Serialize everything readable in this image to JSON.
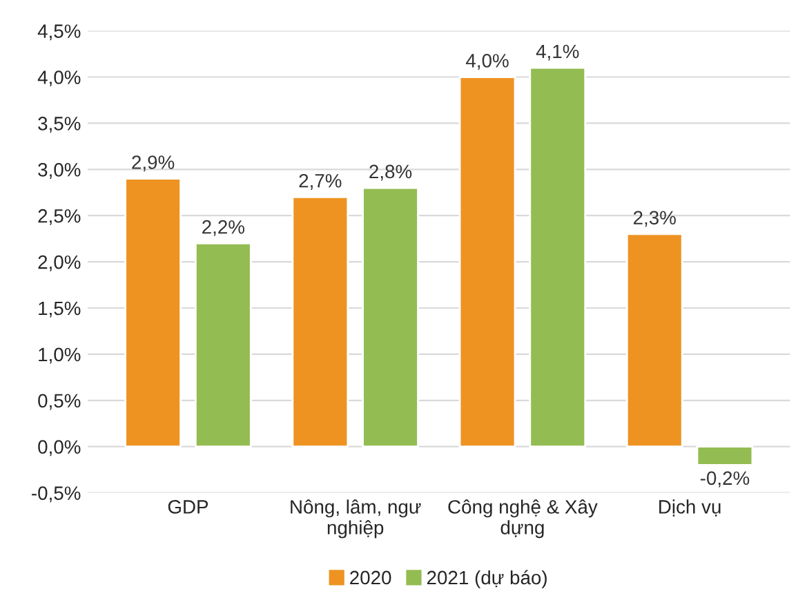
{
  "chart_data": {
    "type": "bar",
    "categories": [
      "GDP",
      "Nông, lâm, ngư\nnghiệp",
      "Công nghệ & Xây\ndựng",
      "Dịch vụ"
    ],
    "series": [
      {
        "name": "2020",
        "color": "#ee9322",
        "values": [
          2.9,
          2.7,
          4.0,
          2.3
        ],
        "value_labels": [
          "2,9%",
          "2,7%",
          "4,0%",
          "2,3%"
        ]
      },
      {
        "name": "2021 (dự báo)",
        "color": "#93bc52",
        "values": [
          2.2,
          2.8,
          4.1,
          -0.2
        ],
        "value_labels": [
          "2,2%",
          "2,8%",
          "4,1%",
          "-0,2%"
        ]
      }
    ],
    "ylim": [
      -0.5,
      4.5
    ],
    "yticks": [
      {
        "value": -0.5,
        "label": "-0,5%"
      },
      {
        "value": 0,
        "label": "0,0%"
      },
      {
        "value": 0.5,
        "label": "0,5%"
      },
      {
        "value": 1,
        "label": "1,0%"
      },
      {
        "value": 1.5,
        "label": "1,5%"
      },
      {
        "value": 2,
        "label": "2,0%"
      },
      {
        "value": 2.5,
        "label": "2,5%"
      },
      {
        "value": 3,
        "label": "3,0%"
      },
      {
        "value": 3.5,
        "label": "3,5%"
      },
      {
        "value": 4,
        "label": "4,0%"
      },
      {
        "value": 4.5,
        "label": "4,5%"
      }
    ],
    "grid": "y",
    "legend": "bottom"
  }
}
